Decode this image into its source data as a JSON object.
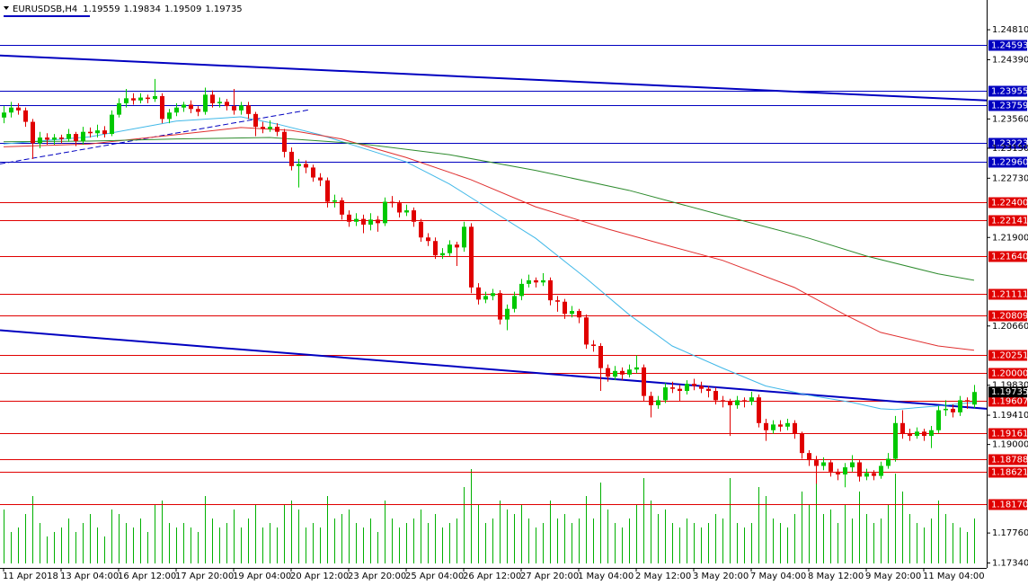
{
  "chart_data": {
    "type": "candlestick",
    "symbol": "EURUSDSB,H4",
    "up_color": "#00c800",
    "down_color": "#e00000",
    "volume_color": "#00b000",
    "xlim": [
      -0.5,
      136.75
    ],
    "ylim": [
      1.1717,
      1.25
    ],
    "yticks": [
      {
        "value": 1.2481,
        "label": "1.24810"
      },
      {
        "value": 1.2439,
        "label": "1.24390"
      },
      {
        "value": 1.2356,
        "label": "1.23560"
      },
      {
        "value": 1.2315,
        "label": "1.23150"
      },
      {
        "value": 1.2273,
        "label": "1.22730"
      },
      {
        "value": 1.219,
        "label": "1.21900"
      },
      {
        "value": 1.2066,
        "label": "1.20660"
      },
      {
        "value": 1.1983,
        "label": "1.19830"
      },
      {
        "value": 1.1941,
        "label": "1.19410"
      },
      {
        "value": 1.19,
        "label": "1.19000"
      },
      {
        "value": 1.1776,
        "label": "1.17760"
      },
      {
        "value": 1.1734,
        "label": "1.17340"
      }
    ],
    "xticks": [
      {
        "value": 0,
        "label": "11 Apr 2018"
      },
      {
        "value": 8,
        "label": "13 Apr 04:00"
      },
      {
        "value": 16,
        "label": "16 Apr 12:00"
      },
      {
        "value": 24,
        "label": "17 Apr 20:00"
      },
      {
        "value": 32,
        "label": "19 Apr 04:00"
      },
      {
        "value": 40,
        "label": "20 Apr 12:00"
      },
      {
        "value": 48,
        "label": "23 Apr 20:00"
      },
      {
        "value": 56,
        "label": "25 Apr 04:00"
      },
      {
        "value": 64,
        "label": "26 Apr 12:00"
      },
      {
        "value": 72,
        "label": "27 Apr 20:00"
      },
      {
        "value": 80,
        "label": "1 May 04:00"
      },
      {
        "value": 88,
        "label": "2 May 12:00"
      },
      {
        "value": 96,
        "label": "3 May 20:00"
      },
      {
        "value": 104,
        "label": "7 May 04:00"
      },
      {
        "value": 112,
        "label": "8 May 12:00"
      },
      {
        "value": 120,
        "label": "9 May 20:00"
      },
      {
        "value": 128,
        "label": "11 May 04:00"
      }
    ],
    "levels": [
      {
        "value": 1.24593,
        "color": "#0000c0"
      },
      {
        "value": 1.23955,
        "color": "#0000c0"
      },
      {
        "value": 1.23759,
        "color": "#0000c0"
      },
      {
        "value": 1.23223,
        "color": "#0000c0"
      },
      {
        "value": 1.2296,
        "label": "1.22960",
        "color": "#0000c0"
      },
      {
        "value": 1.224,
        "label": "1.22400",
        "color": "#e00000"
      },
      {
        "value": 1.22141,
        "color": "#e00000"
      },
      {
        "value": 1.2164,
        "label": "1.21640",
        "color": "#e00000"
      },
      {
        "value": 1.21111,
        "color": "#e00000"
      },
      {
        "value": 1.20809,
        "color": "#e00000"
      },
      {
        "value": 1.20251,
        "color": "#e00000"
      },
      {
        "value": 1.2,
        "label": "1.20000",
        "color": "#e00000"
      },
      {
        "value": 1.19607,
        "color": "#e00000"
      },
      {
        "value": 1.19161,
        "color": "#e00000"
      },
      {
        "value": 1.18788,
        "color": "#e00000"
      },
      {
        "value": 1.18621,
        "color": "#e00000"
      },
      {
        "value": 1.1817,
        "label": "1.18170",
        "color": "#e00000"
      }
    ],
    "moving_averages": [
      {
        "color": "#40b8e8",
        "x": [
          0,
          12,
          24,
          33,
          38,
          44,
          50,
          56,
          62,
          68,
          74,
          81,
          87,
          93,
          100,
          106,
          112,
          118,
          122,
          124,
          130,
          135
        ],
        "values": [
          1.2321,
          1.2331,
          1.2353,
          1.2359,
          1.2349,
          1.2334,
          1.2315,
          1.2296,
          1.2265,
          1.2227,
          1.2189,
          1.2133,
          1.2082,
          1.2038,
          1.2007,
          1.1982,
          1.1969,
          1.1959,
          1.195,
          1.1949,
          1.1954,
          1.1959
        ]
      },
      {
        "color": "#e03030",
        "x": [
          0,
          12,
          24,
          33,
          40,
          47,
          56,
          65,
          74,
          84,
          93,
          100,
          110,
          117,
          122,
          130,
          135
        ],
        "values": [
          1.2317,
          1.2321,
          1.2334,
          1.2344,
          1.234,
          1.2328,
          1.2302,
          1.2271,
          1.2233,
          1.2202,
          1.2177,
          1.2158,
          1.212,
          1.2082,
          1.2057,
          1.2038,
          1.2032
        ]
      },
      {
        "color": "#2e8b2e",
        "x": [
          0,
          12,
          24,
          37,
          50,
          62,
          74,
          87,
          100,
          112,
          120,
          130,
          135
        ],
        "values": [
          1.2324,
          1.2325,
          1.2328,
          1.233,
          1.2321,
          1.2306,
          1.2284,
          1.2256,
          1.2221,
          1.2189,
          1.2164,
          1.2139,
          1.213
        ]
      }
    ],
    "trendlines": [
      {
        "color": "#0000c0",
        "dashed": false,
        "x": [
          -0.5,
          136.75
        ],
        "values": [
          1.2445,
          1.2382
        ]
      },
      {
        "color": "#0000c0",
        "dashed": false,
        "x": [
          -0.5,
          136.75
        ],
        "values": [
          1.206,
          1.195
        ]
      },
      {
        "color": "#0000c0",
        "dashed": true,
        "x": [
          -0.5,
          42.6
        ],
        "values": [
          1.2293,
          1.2369
        ]
      }
    ],
    "candles": [
      [
        1.2358,
        1.2374,
        1.235,
        1.2365
      ],
      [
        1.2365,
        1.238,
        1.2358,
        1.2372
      ],
      [
        1.2372,
        1.2378,
        1.2362,
        1.2368
      ],
      [
        1.2368,
        1.2372,
        1.2345,
        1.2352
      ],
      [
        1.2352,
        1.2356,
        1.23,
        1.2322
      ],
      [
        1.2322,
        1.2338,
        1.2315,
        1.233
      ],
      [
        1.233,
        1.2336,
        1.232,
        1.2327
      ],
      [
        1.2327,
        1.2335,
        1.232,
        1.233
      ],
      [
        1.233,
        1.2334,
        1.2322,
        1.2328
      ],
      [
        1.2328,
        1.2342,
        1.2324,
        1.2335
      ],
      [
        1.2335,
        1.2338,
        1.2318,
        1.2325
      ],
      [
        1.2325,
        1.2345,
        1.232,
        1.2338
      ],
      [
        1.2338,
        1.2344,
        1.233,
        1.2336
      ],
      [
        1.2336,
        1.2348,
        1.233,
        1.234
      ],
      [
        1.234,
        1.2346,
        1.233,
        1.2335
      ],
      [
        1.2335,
        1.2368,
        1.2332,
        1.2362
      ],
      [
        1.2362,
        1.2385,
        1.2358,
        1.2378
      ],
      [
        1.2378,
        1.2398,
        1.2372,
        1.2385
      ],
      [
        1.2385,
        1.2392,
        1.2376,
        1.2382
      ],
      [
        1.2382,
        1.2392,
        1.2378,
        1.2386
      ],
      [
        1.2386,
        1.239,
        1.2378,
        1.2384
      ],
      [
        1.2384,
        1.2412,
        1.238,
        1.2388
      ],
      [
        1.2388,
        1.2392,
        1.235,
        1.2356
      ],
      [
        1.2356,
        1.237,
        1.235,
        1.2365
      ],
      [
        1.2365,
        1.2378,
        1.236,
        1.2372
      ],
      [
        1.2372,
        1.238,
        1.2366,
        1.2376
      ],
      [
        1.2376,
        1.2382,
        1.2364,
        1.237
      ],
      [
        1.237,
        1.2374,
        1.236,
        1.2366
      ],
      [
        1.2366,
        1.24,
        1.2362,
        1.239
      ],
      [
        1.239,
        1.2396,
        1.2372,
        1.2378
      ],
      [
        1.2378,
        1.2386,
        1.2372,
        1.238
      ],
      [
        1.238,
        1.2384,
        1.2368,
        1.2374
      ],
      [
        1.2374,
        1.2398,
        1.2362,
        1.2368
      ],
      [
        1.2368,
        1.238,
        1.2362,
        1.2375
      ],
      [
        1.2375,
        1.238,
        1.2356,
        1.2363
      ],
      [
        1.2363,
        1.2366,
        1.2332,
        1.2345
      ],
      [
        1.2345,
        1.2352,
        1.2336,
        1.2342
      ],
      [
        1.2342,
        1.2354,
        1.2338,
        1.2345
      ],
      [
        1.2345,
        1.235,
        1.2332,
        1.2338
      ],
      [
        1.2338,
        1.2342,
        1.2302,
        1.231
      ],
      [
        1.231,
        1.2316,
        1.2284,
        1.229
      ],
      [
        1.229,
        1.23,
        1.226,
        1.2293
      ],
      [
        1.2293,
        1.2298,
        1.228,
        1.2288
      ],
      [
        1.2288,
        1.2292,
        1.2268,
        1.2274
      ],
      [
        1.2274,
        1.228,
        1.2262,
        1.227
      ],
      [
        1.227,
        1.2274,
        1.2232,
        1.224
      ],
      [
        1.224,
        1.225,
        1.2232,
        1.2242
      ],
      [
        1.2242,
        1.2246,
        1.2215,
        1.2222
      ],
      [
        1.2222,
        1.2228,
        1.2205,
        1.2212
      ],
      [
        1.2212,
        1.2224,
        1.2206,
        1.2216
      ],
      [
        1.2216,
        1.2222,
        1.2196,
        1.2208
      ],
      [
        1.2208,
        1.2224,
        1.22,
        1.2215
      ],
      [
        1.2215,
        1.222,
        1.2198,
        1.221
      ],
      [
        1.221,
        1.2246,
        1.2206,
        1.224
      ],
      [
        1.224,
        1.2248,
        1.2232,
        1.2238
      ],
      [
        1.2238,
        1.2242,
        1.2218,
        1.2225
      ],
      [
        1.2225,
        1.2236,
        1.222,
        1.2228
      ],
      [
        1.2228,
        1.2232,
        1.2205,
        1.2212
      ],
      [
        1.2212,
        1.2216,
        1.2184,
        1.219
      ],
      [
        1.219,
        1.2196,
        1.2178,
        1.2185
      ],
      [
        1.2185,
        1.219,
        1.216,
        1.2165
      ],
      [
        1.2165,
        1.2175,
        1.216,
        1.2168
      ],
      [
        1.2168,
        1.2186,
        1.2164,
        1.218
      ],
      [
        1.218,
        1.2184,
        1.215,
        1.2176
      ],
      [
        1.2176,
        1.2212,
        1.217,
        1.2205
      ],
      [
        1.2205,
        1.221,
        1.2112,
        1.212
      ],
      [
        1.212,
        1.2126,
        1.2096,
        1.2103
      ],
      [
        1.2103,
        1.2114,
        1.2098,
        1.2108
      ],
      [
        1.2108,
        1.2118,
        1.2102,
        1.2112
      ],
      [
        1.2112,
        1.2116,
        1.2068,
        1.2075
      ],
      [
        1.2075,
        1.2096,
        1.206,
        1.209
      ],
      [
        1.209,
        1.2114,
        1.2085,
        1.2108
      ],
      [
        1.2108,
        1.2132,
        1.2102,
        1.2125
      ],
      [
        1.2125,
        1.2138,
        1.212,
        1.213
      ],
      [
        1.213,
        1.2134,
        1.212,
        1.2127
      ],
      [
        1.2127,
        1.214,
        1.2122,
        1.213
      ],
      [
        1.213,
        1.2134,
        1.2095,
        1.2102
      ],
      [
        1.2102,
        1.2108,
        1.2086,
        1.21
      ],
      [
        1.21,
        1.2104,
        1.2076,
        1.2083
      ],
      [
        1.2083,
        1.2094,
        1.2078,
        1.2087
      ],
      [
        1.2087,
        1.209,
        1.207,
        1.2078
      ],
      [
        1.2078,
        1.2082,
        1.2034,
        1.204
      ],
      [
        1.204,
        1.2046,
        1.203,
        1.2038
      ],
      [
        1.2038,
        1.2042,
        1.1975,
        1.2007
      ],
      [
        1.2007,
        1.2012,
        1.1988,
        1.1995
      ],
      [
        1.1995,
        1.201,
        1.199,
        1.2003
      ],
      [
        1.2003,
        1.2008,
        1.199,
        1.1998
      ],
      [
        1.1998,
        1.2012,
        1.1994,
        1.2005
      ],
      [
        1.2005,
        1.2025,
        1.2,
        1.2008
      ],
      [
        1.2008,
        1.2012,
        1.196,
        1.1968
      ],
      [
        1.1968,
        1.1974,
        1.1938,
        1.1955
      ],
      [
        1.1955,
        1.1968,
        1.195,
        1.1962
      ],
      [
        1.1962,
        1.1986,
        1.1958,
        1.198
      ],
      [
        1.198,
        1.1988,
        1.1972,
        1.1978
      ],
      [
        1.1978,
        1.1984,
        1.196,
        1.1975
      ],
      [
        1.1975,
        1.199,
        1.197,
        1.1985
      ],
      [
        1.1985,
        1.1992,
        1.1976,
        1.1982
      ],
      [
        1.1982,
        1.1988,
        1.1972,
        1.1978
      ],
      [
        1.1978,
        1.1982,
        1.1966,
        1.1975
      ],
      [
        1.1975,
        1.198,
        1.1956,
        1.1962
      ],
      [
        1.1962,
        1.1968,
        1.1952,
        1.196
      ],
      [
        1.196,
        1.1964,
        1.1912,
        1.1955
      ],
      [
        1.1955,
        1.1968,
        1.195,
        1.1962
      ],
      [
        1.1962,
        1.1966,
        1.1952,
        1.196
      ],
      [
        1.196,
        1.1974,
        1.1955,
        1.1966
      ],
      [
        1.1966,
        1.197,
        1.1924,
        1.193
      ],
      [
        1.193,
        1.1936,
        1.1905,
        1.192
      ],
      [
        1.192,
        1.1934,
        1.1915,
        1.1928
      ],
      [
        1.1928,
        1.1934,
        1.1918,
        1.1925
      ],
      [
        1.1925,
        1.1936,
        1.192,
        1.193
      ],
      [
        1.193,
        1.1934,
        1.1908,
        1.1915
      ],
      [
        1.1915,
        1.1918,
        1.188,
        1.1888
      ],
      [
        1.1888,
        1.1892,
        1.187,
        1.1878
      ],
      [
        1.1878,
        1.1884,
        1.1845,
        1.187
      ],
      [
        1.187,
        1.1882,
        1.1864,
        1.1875
      ],
      [
        1.1875,
        1.1878,
        1.1855,
        1.1862
      ],
      [
        1.1862,
        1.1866,
        1.185,
        1.1858
      ],
      [
        1.1858,
        1.1874,
        1.184,
        1.1868
      ],
      [
        1.1868,
        1.1885,
        1.1862,
        1.1875
      ],
      [
        1.1875,
        1.1878,
        1.1848,
        1.1855
      ],
      [
        1.1855,
        1.1866,
        1.185,
        1.186
      ],
      [
        1.186,
        1.1864,
        1.185,
        1.1856
      ],
      [
        1.1856,
        1.1876,
        1.1852,
        1.187
      ],
      [
        1.187,
        1.1888,
        1.1866,
        1.188
      ],
      [
        1.188,
        1.194,
        1.1876,
        1.193
      ],
      [
        1.193,
        1.1948,
        1.1908,
        1.1915
      ],
      [
        1.1915,
        1.1922,
        1.1905,
        1.1912
      ],
      [
        1.1912,
        1.1924,
        1.1908,
        1.1918
      ],
      [
        1.1918,
        1.1922,
        1.1905,
        1.1912
      ],
      [
        1.1912,
        1.1926,
        1.1895,
        1.192
      ],
      [
        1.192,
        1.1954,
        1.1916,
        1.1948
      ],
      [
        1.1948,
        1.1962,
        1.194,
        1.195
      ],
      [
        1.195,
        1.1956,
        1.1938,
        1.1945
      ],
      [
        1.1945,
        1.1968,
        1.194,
        1.1962
      ],
      [
        1.1962,
        1.1966,
        1.195,
        1.196
      ],
      [
        1.19559,
        1.19834,
        1.19509,
        1.19735
      ]
    ],
    "volumes": [
      60,
      35,
      40,
      55,
      75,
      45,
      30,
      35,
      40,
      50,
      35,
      45,
      55,
      40,
      30,
      60,
      55,
      45,
      40,
      50,
      35,
      65,
      70,
      45,
      40,
      45,
      40,
      35,
      75,
      50,
      40,
      45,
      60,
      40,
      50,
      65,
      40,
      45,
      40,
      65,
      70,
      60,
      40,
      45,
      40,
      75,
      50,
      55,
      60,
      45,
      40,
      50,
      35,
      70,
      50,
      40,
      45,
      50,
      60,
      45,
      55,
      40,
      45,
      50,
      85,
      105,
      65,
      45,
      50,
      70,
      60,
      55,
      65,
      50,
      40,
      45,
      70,
      50,
      55,
      45,
      50,
      75,
      50,
      90,
      60,
      45,
      40,
      50,
      65,
      95,
      70,
      55,
      60,
      45,
      40,
      50,
      45,
      40,
      45,
      55,
      50,
      95,
      45,
      40,
      45,
      85,
      75,
      50,
      45,
      40,
      55,
      80,
      65,
      90,
      55,
      60,
      45,
      65,
      50,
      80,
      55,
      45,
      50,
      65,
      100,
      80,
      55,
      45,
      40,
      50,
      70,
      55,
      45,
      40,
      35,
      50
    ]
  }
}
